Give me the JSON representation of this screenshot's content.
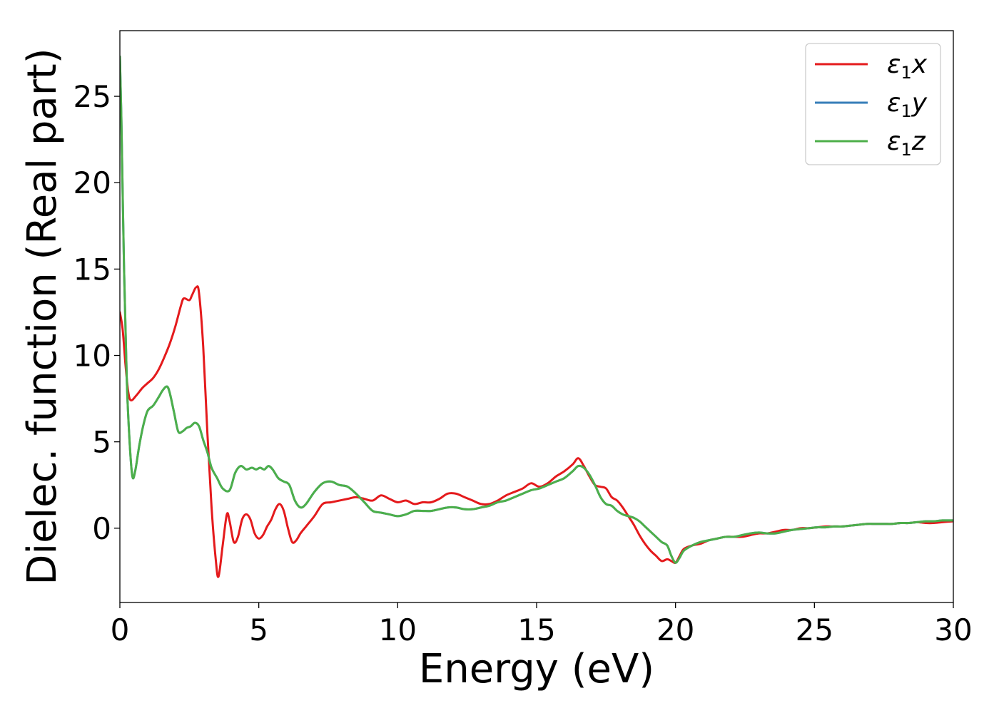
{
  "chart_data": {
    "type": "line",
    "title": "",
    "xlabel": "Energy (eV)",
    "ylabel": "Dielec. function (Real part)",
    "xlim": [
      0,
      30
    ],
    "ylim": [
      -4.3,
      28.8
    ],
    "xticks": [
      0,
      5,
      10,
      15,
      20,
      25,
      30
    ],
    "xtick_labels": [
      "0",
      "5",
      "10",
      "15",
      "20",
      "25",
      "30"
    ],
    "yticks": [
      0,
      5,
      10,
      15,
      20,
      25
    ],
    "ytick_labels": [
      "0",
      "5",
      "10",
      "15",
      "20",
      "25"
    ],
    "grid": false,
    "legend_position": "top-right",
    "series": [
      {
        "name": "ε1x",
        "legend_main": "ε",
        "legend_sub": "1",
        "legend_suffix": "x",
        "color": "#e41a1c",
        "x": [
          0,
          0.1,
          0.2,
          0.3,
          0.4,
          0.6,
          0.8,
          1.0,
          1.2,
          1.4,
          1.6,
          1.8,
          2.0,
          2.2,
          2.3,
          2.5,
          2.6,
          2.75,
          2.85,
          3.0,
          3.15,
          3.3,
          3.45,
          3.55,
          3.7,
          3.85,
          3.95,
          4.1,
          4.25,
          4.4,
          4.55,
          4.7,
          4.85,
          5.0,
          5.15,
          5.3,
          5.45,
          5.6,
          5.75,
          5.9,
          6.05,
          6.2,
          6.35,
          6.5,
          6.7,
          7.0,
          7.3,
          7.6,
          7.9,
          8.2,
          8.5,
          8.8,
          9.1,
          9.4,
          9.7,
          10.0,
          10.3,
          10.6,
          10.9,
          11.2,
          11.5,
          11.8,
          12.1,
          12.4,
          12.7,
          13.0,
          13.3,
          13.6,
          13.9,
          14.2,
          14.5,
          14.8,
          15.1,
          15.4,
          15.7,
          16.0,
          16.3,
          16.5,
          16.7,
          16.9,
          17.1,
          17.3,
          17.5,
          17.7,
          17.9,
          18.1,
          18.3,
          18.5,
          18.7,
          18.9,
          19.1,
          19.3,
          19.5,
          19.7,
          19.85,
          20.0,
          20.15,
          20.3,
          20.6,
          20.9,
          21.2,
          21.5,
          21.8,
          22.1,
          22.4,
          22.7,
          23.0,
          23.3,
          23.6,
          23.9,
          24.2,
          24.5,
          24.8,
          25.1,
          25.4,
          25.7,
          26.0,
          26.3,
          26.6,
          26.9,
          27.2,
          27.5,
          27.8,
          28.1,
          28.4,
          28.7,
          29.0,
          29.3,
          29.6,
          30.0
        ],
        "y": [
          12.5,
          11.5,
          9.5,
          7.9,
          7.4,
          7.7,
          8.1,
          8.4,
          8.7,
          9.2,
          9.9,
          10.7,
          11.7,
          12.9,
          13.3,
          13.2,
          13.5,
          13.95,
          13.6,
          10.5,
          5.5,
          1.2,
          -1.8,
          -2.8,
          -1.0,
          0.8,
          0.4,
          -0.8,
          -0.5,
          0.5,
          0.8,
          0.5,
          -0.3,
          -0.6,
          -0.4,
          0.1,
          0.5,
          1.1,
          1.4,
          1.0,
          0.0,
          -0.8,
          -0.7,
          -0.3,
          0.1,
          0.7,
          1.4,
          1.5,
          1.6,
          1.7,
          1.8,
          1.7,
          1.6,
          1.9,
          1.7,
          1.5,
          1.6,
          1.4,
          1.5,
          1.5,
          1.7,
          2.0,
          2.0,
          1.8,
          1.6,
          1.4,
          1.4,
          1.6,
          1.9,
          2.1,
          2.3,
          2.6,
          2.4,
          2.6,
          3.0,
          3.3,
          3.7,
          4.05,
          3.6,
          3.0,
          2.5,
          2.4,
          2.3,
          1.8,
          1.6,
          1.2,
          0.7,
          0.2,
          -0.4,
          -0.9,
          -1.3,
          -1.6,
          -1.9,
          -1.8,
          -1.9,
          -2.0,
          -1.6,
          -1.2,
          -1.0,
          -0.9,
          -0.7,
          -0.6,
          -0.5,
          -0.5,
          -0.5,
          -0.4,
          -0.3,
          -0.3,
          -0.2,
          -0.1,
          -0.1,
          0.0,
          0.0,
          0.05,
          0.1,
          0.1,
          0.1,
          0.15,
          0.2,
          0.25,
          0.25,
          0.25,
          0.25,
          0.3,
          0.3,
          0.35,
          0.3,
          0.3,
          0.35,
          0.4
        ]
      },
      {
        "name": "ε1y",
        "legend_main": "ε",
        "legend_sub": "1",
        "legend_suffix": "y",
        "color": "#377eb8",
        "x": [
          0,
          0.05,
          0.15,
          0.25,
          0.35,
          0.45,
          0.55,
          0.7,
          0.85,
          1.0,
          1.2,
          1.4,
          1.55,
          1.7,
          1.8,
          1.95,
          2.1,
          2.25,
          2.4,
          2.55,
          2.7,
          2.85,
          3.0,
          3.15,
          3.3,
          3.5,
          3.7,
          3.95,
          4.15,
          4.35,
          4.55,
          4.75,
          4.9,
          5.05,
          5.2,
          5.35,
          5.5,
          5.7,
          5.9,
          6.1,
          6.3,
          6.5,
          6.7,
          7.0,
          7.3,
          7.6,
          7.9,
          8.2,
          8.5,
          8.8,
          9.1,
          9.4,
          9.7,
          10.0,
          10.3,
          10.6,
          10.9,
          11.2,
          11.5,
          11.8,
          12.1,
          12.4,
          12.7,
          13.0,
          13.3,
          13.6,
          13.9,
          14.2,
          14.5,
          14.8,
          15.1,
          15.4,
          15.7,
          16.0,
          16.3,
          16.5,
          16.7,
          16.9,
          17.1,
          17.3,
          17.5,
          17.7,
          17.9,
          18.1,
          18.3,
          18.5,
          18.7,
          18.9,
          19.1,
          19.3,
          19.5,
          19.7,
          19.85,
          20.0,
          20.15,
          20.3,
          20.6,
          20.9,
          21.2,
          21.5,
          21.8,
          22.1,
          22.4,
          22.7,
          23.0,
          23.3,
          23.6,
          23.9,
          24.2,
          24.5,
          24.8,
          25.1,
          25.4,
          25.7,
          26.0,
          26.3,
          26.6,
          26.9,
          27.2,
          27.5,
          27.8,
          28.1,
          28.4,
          28.7,
          29.0,
          29.3,
          29.6,
          30.0
        ],
        "y": [
          27.3,
          24.0,
          15.0,
          8.5,
          5.0,
          3.0,
          3.3,
          4.8,
          6.0,
          6.8,
          7.1,
          7.6,
          8.0,
          8.2,
          7.8,
          6.7,
          5.6,
          5.6,
          5.8,
          5.9,
          6.1,
          5.9,
          5.1,
          4.4,
          3.5,
          2.9,
          2.3,
          2.2,
          3.2,
          3.6,
          3.4,
          3.5,
          3.4,
          3.5,
          3.4,
          3.6,
          3.4,
          2.9,
          2.7,
          2.5,
          1.6,
          1.2,
          1.4,
          2.1,
          2.6,
          2.7,
          2.5,
          2.4,
          2.0,
          1.5,
          1.0,
          0.9,
          0.8,
          0.7,
          0.8,
          1.0,
          1.0,
          1.0,
          1.1,
          1.2,
          1.2,
          1.1,
          1.1,
          1.2,
          1.3,
          1.5,
          1.6,
          1.8,
          2.0,
          2.2,
          2.3,
          2.5,
          2.7,
          2.9,
          3.3,
          3.6,
          3.5,
          3.1,
          2.5,
          1.8,
          1.4,
          1.3,
          1.0,
          0.8,
          0.7,
          0.6,
          0.4,
          0.1,
          -0.2,
          -0.5,
          -0.8,
          -1.0,
          -1.6,
          -2.0,
          -1.7,
          -1.3,
          -1.0,
          -0.8,
          -0.7,
          -0.6,
          -0.5,
          -0.5,
          -0.4,
          -0.3,
          -0.25,
          -0.3,
          -0.3,
          -0.2,
          -0.1,
          -0.05,
          0.0,
          0.05,
          0.05,
          0.1,
          0.1,
          0.15,
          0.2,
          0.25,
          0.25,
          0.25,
          0.25,
          0.3,
          0.3,
          0.35,
          0.4,
          0.4,
          0.45,
          0.45
        ]
      },
      {
        "name": "ε1z",
        "legend_main": "ε",
        "legend_sub": "1",
        "legend_suffix": "z",
        "color": "#4daf4a",
        "x": [
          0,
          0.05,
          0.15,
          0.25,
          0.35,
          0.45,
          0.55,
          0.7,
          0.85,
          1.0,
          1.2,
          1.4,
          1.55,
          1.7,
          1.8,
          1.95,
          2.1,
          2.25,
          2.4,
          2.55,
          2.7,
          2.85,
          3.0,
          3.15,
          3.3,
          3.5,
          3.7,
          3.95,
          4.15,
          4.35,
          4.55,
          4.75,
          4.9,
          5.05,
          5.2,
          5.35,
          5.5,
          5.7,
          5.9,
          6.1,
          6.3,
          6.5,
          6.7,
          7.0,
          7.3,
          7.6,
          7.9,
          8.2,
          8.5,
          8.8,
          9.1,
          9.4,
          9.7,
          10.0,
          10.3,
          10.6,
          10.9,
          11.2,
          11.5,
          11.8,
          12.1,
          12.4,
          12.7,
          13.0,
          13.3,
          13.6,
          13.9,
          14.2,
          14.5,
          14.8,
          15.1,
          15.4,
          15.7,
          16.0,
          16.3,
          16.5,
          16.7,
          16.9,
          17.1,
          17.3,
          17.5,
          17.7,
          17.9,
          18.1,
          18.3,
          18.5,
          18.7,
          18.9,
          19.1,
          19.3,
          19.5,
          19.7,
          19.85,
          20.0,
          20.15,
          20.3,
          20.6,
          20.9,
          21.2,
          21.5,
          21.8,
          22.1,
          22.4,
          22.7,
          23.0,
          23.3,
          23.6,
          23.9,
          24.2,
          24.5,
          24.8,
          25.1,
          25.4,
          25.7,
          26.0,
          26.3,
          26.6,
          26.9,
          27.2,
          27.5,
          27.8,
          28.1,
          28.4,
          28.7,
          29.0,
          29.3,
          29.6,
          30.0
        ],
        "y": [
          27.3,
          24.0,
          15.0,
          8.5,
          5.0,
          3.0,
          3.3,
          4.8,
          6.0,
          6.8,
          7.1,
          7.6,
          8.0,
          8.2,
          7.8,
          6.7,
          5.6,
          5.6,
          5.8,
          5.9,
          6.1,
          5.9,
          5.1,
          4.4,
          3.5,
          2.9,
          2.3,
          2.2,
          3.2,
          3.6,
          3.4,
          3.5,
          3.4,
          3.5,
          3.4,
          3.6,
          3.4,
          2.9,
          2.7,
          2.5,
          1.6,
          1.2,
          1.4,
          2.1,
          2.6,
          2.7,
          2.5,
          2.4,
          2.0,
          1.5,
          1.0,
          0.9,
          0.8,
          0.7,
          0.8,
          1.0,
          1.0,
          1.0,
          1.1,
          1.2,
          1.2,
          1.1,
          1.1,
          1.2,
          1.3,
          1.5,
          1.6,
          1.8,
          2.0,
          2.2,
          2.3,
          2.5,
          2.7,
          2.9,
          3.3,
          3.6,
          3.5,
          3.1,
          2.5,
          1.8,
          1.4,
          1.3,
          1.0,
          0.8,
          0.7,
          0.6,
          0.4,
          0.1,
          -0.2,
          -0.5,
          -0.8,
          -1.0,
          -1.6,
          -2.0,
          -1.7,
          -1.3,
          -1.0,
          -0.8,
          -0.7,
          -0.6,
          -0.5,
          -0.5,
          -0.4,
          -0.3,
          -0.25,
          -0.3,
          -0.3,
          -0.2,
          -0.1,
          -0.05,
          0.0,
          0.05,
          0.05,
          0.1,
          0.1,
          0.15,
          0.2,
          0.25,
          0.25,
          0.25,
          0.25,
          0.3,
          0.3,
          0.35,
          0.4,
          0.4,
          0.45,
          0.45
        ]
      }
    ]
  }
}
